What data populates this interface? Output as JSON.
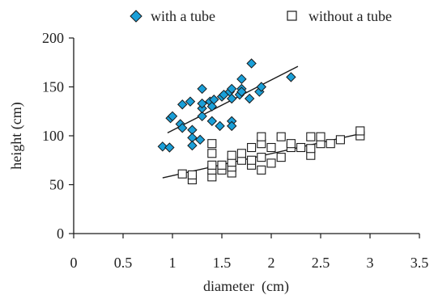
{
  "chart_data": {
    "type": "scatter",
    "title": "",
    "xlabel": "diameter  (cm)",
    "ylabel": "height (cm)",
    "xlim": [
      0,
      3.5
    ],
    "ylim": [
      0,
      200
    ],
    "xticks": [
      "0",
      "0.5",
      "1",
      "1.5",
      "2",
      "2.5",
      "3",
      "3.5"
    ],
    "yticks": [
      "0",
      "50",
      "100",
      "150",
      "200"
    ],
    "grid": false,
    "legend": "top",
    "series": [
      {
        "name": "with a tube",
        "marker": "diamond",
        "color": "#1a9fd8",
        "points": [
          [
            0.9,
            89
          ],
          [
            0.97,
            88
          ],
          [
            0.98,
            118
          ],
          [
            1.0,
            120
          ],
          [
            1.08,
            112
          ],
          [
            1.1,
            108
          ],
          [
            1.1,
            132
          ],
          [
            1.18,
            135
          ],
          [
            1.2,
            106
          ],
          [
            1.2,
            98
          ],
          [
            1.2,
            90
          ],
          [
            1.28,
            96
          ],
          [
            1.3,
            120
          ],
          [
            1.3,
            128
          ],
          [
            1.3,
            133
          ],
          [
            1.3,
            148
          ],
          [
            1.38,
            135
          ],
          [
            1.4,
            115
          ],
          [
            1.4,
            130
          ],
          [
            1.42,
            137
          ],
          [
            1.48,
            110
          ],
          [
            1.5,
            140
          ],
          [
            1.52,
            142
          ],
          [
            1.58,
            145
          ],
          [
            1.6,
            138
          ],
          [
            1.6,
            148
          ],
          [
            1.6,
            115
          ],
          [
            1.6,
            110
          ],
          [
            1.68,
            142
          ],
          [
            1.7,
            148
          ],
          [
            1.7,
            158
          ],
          [
            1.7,
            145
          ],
          [
            1.78,
            138
          ],
          [
            1.8,
            174
          ],
          [
            1.88,
            145
          ],
          [
            1.9,
            150
          ],
          [
            2.2,
            160
          ]
        ],
        "trend": [
          [
            0.95,
            103
          ],
          [
            2.27,
            171
          ]
        ]
      },
      {
        "name": "without a tube",
        "marker": "square",
        "color": "#ffffff",
        "points": [
          [
            1.1,
            61
          ],
          [
            1.2,
            55
          ],
          [
            1.2,
            60
          ],
          [
            1.4,
            58
          ],
          [
            1.4,
            65
          ],
          [
            1.4,
            70
          ],
          [
            1.4,
            82
          ],
          [
            1.4,
            92
          ],
          [
            1.5,
            65
          ],
          [
            1.5,
            70
          ],
          [
            1.6,
            62
          ],
          [
            1.6,
            68
          ],
          [
            1.6,
            73
          ],
          [
            1.6,
            80
          ],
          [
            1.7,
            75
          ],
          [
            1.7,
            82
          ],
          [
            1.8,
            70
          ],
          [
            1.8,
            75
          ],
          [
            1.8,
            88
          ],
          [
            1.9,
            65
          ],
          [
            1.9,
            78
          ],
          [
            1.9,
            92
          ],
          [
            1.9,
            99
          ],
          [
            2.0,
            72
          ],
          [
            2.0,
            88
          ],
          [
            2.1,
            78
          ],
          [
            2.1,
            99
          ],
          [
            2.2,
            88
          ],
          [
            2.2,
            92
          ],
          [
            2.3,
            88
          ],
          [
            2.4,
            80
          ],
          [
            2.4,
            87
          ],
          [
            2.4,
            99
          ],
          [
            2.5,
            92
          ],
          [
            2.5,
            99
          ],
          [
            2.6,
            92
          ],
          [
            2.7,
            96
          ],
          [
            2.9,
            100
          ],
          [
            2.9,
            105
          ]
        ],
        "trend": [
          [
            0.9,
            57
          ],
          [
            2.9,
            102
          ]
        ]
      }
    ]
  }
}
